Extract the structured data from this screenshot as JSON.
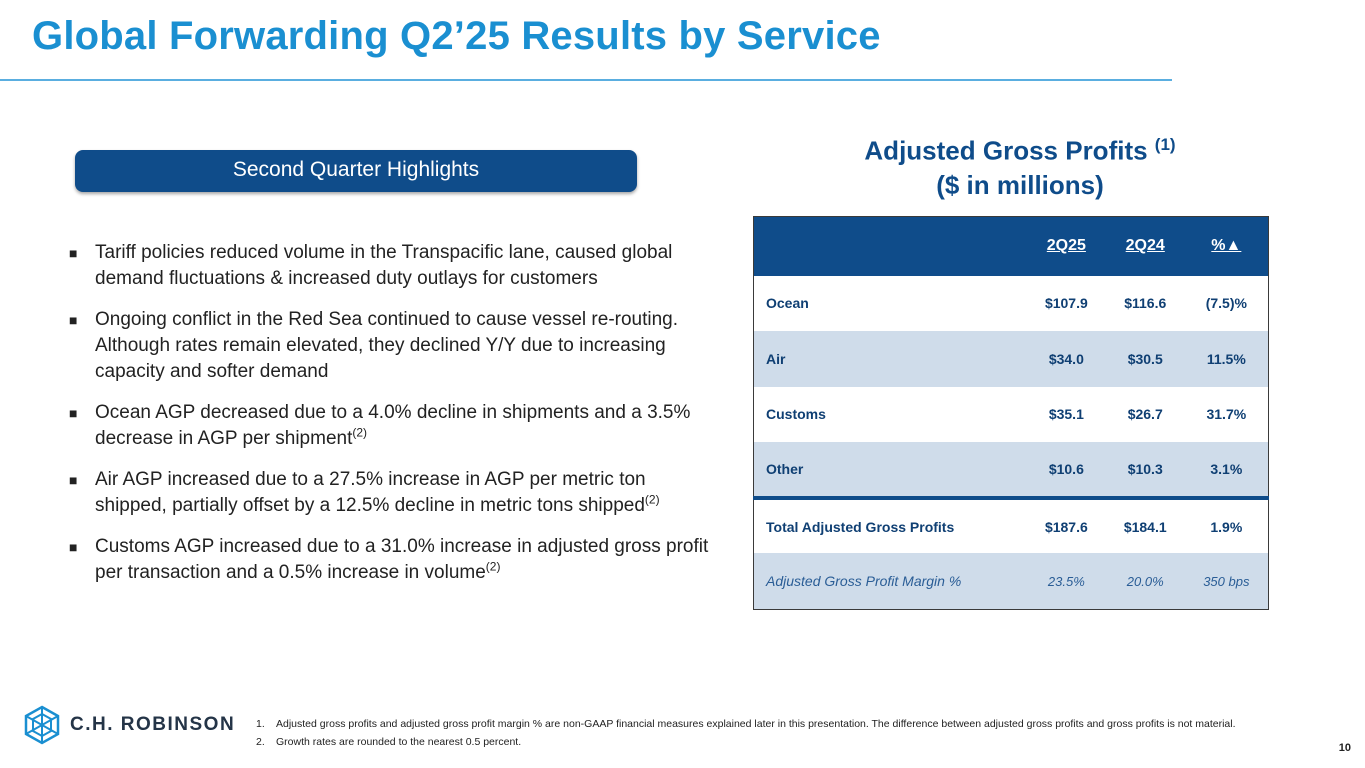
{
  "header": {
    "title": "Global Forwarding Q2’25 Results by Service"
  },
  "highlights": {
    "heading": "Second Quarter Highlights",
    "bullet_symbol": "■",
    "items": [
      {
        "text": "Tariff policies reduced volume in the Transpacific lane, caused global demand fluctuations & increased duty outlays for customers",
        "note": ""
      },
      {
        "text": "Ongoing conflict in the Red Sea continued to cause vessel re-routing. Although rates remain elevated, they declined Y/Y due to increasing capacity and softer demand",
        "note": ""
      },
      {
        "text": "Ocean AGP decreased due to a 4.0% decline in shipments and a 3.5% decrease in AGP per shipment",
        "note": "(2)"
      },
      {
        "text": "Air AGP increased due to a 27.5% increase in AGP per metric ton shipped, partially offset by a 12.5% decline in metric tons shipped",
        "note": "(2)"
      },
      {
        "text": "Customs AGP increased due to a 31.0% increase in adjusted gross profit per transaction and a 0.5% increase in volume",
        "note": "(2)"
      }
    ]
  },
  "table": {
    "title_line1": "Adjusted Gross Profits",
    "title_note": "(1)",
    "title_line2": "($ in millions)",
    "headers": [
      "",
      "2Q25",
      "2Q24",
      "%▲"
    ],
    "rows": [
      {
        "label": "Ocean",
        "q25": "$107.9",
        "q24": "$116.6",
        "pct": "(7.5)%"
      },
      {
        "label": "Air",
        "q25": "$34.0",
        "q24": "$30.5",
        "pct": "11.5%"
      },
      {
        "label": "Customs",
        "q25": "$35.1",
        "q24": "$26.7",
        "pct": "31.7%"
      },
      {
        "label": "Other",
        "q25": "$10.6",
        "q24": "$10.3",
        "pct": "3.1%"
      },
      {
        "label": "Total Adjusted Gross Profits",
        "q25": "$187.6",
        "q24": "$184.1",
        "pct": "1.9%"
      },
      {
        "label": "Adjusted Gross Profit Margin %",
        "q25": "23.5%",
        "q24": "20.0%",
        "pct": "350 bps"
      }
    ]
  },
  "footer": {
    "logo_text": "C.H. ROBINSON",
    "logo_icon": "cube-icon",
    "notes": [
      {
        "num": "1.",
        "text": "Adjusted gross profits and adjusted gross profit margin % are non-GAAP financial measures explained later in this presentation. The difference between adjusted gross profits and gross profits is not material."
      },
      {
        "num": "2.",
        "text": "Growth rates are rounded to the nearest 0.5 percent."
      }
    ],
    "page_number": "10"
  },
  "colors": {
    "title_blue": "#1a8fd1",
    "navy": "#0f4c8a",
    "band": "#cfdcea"
  }
}
